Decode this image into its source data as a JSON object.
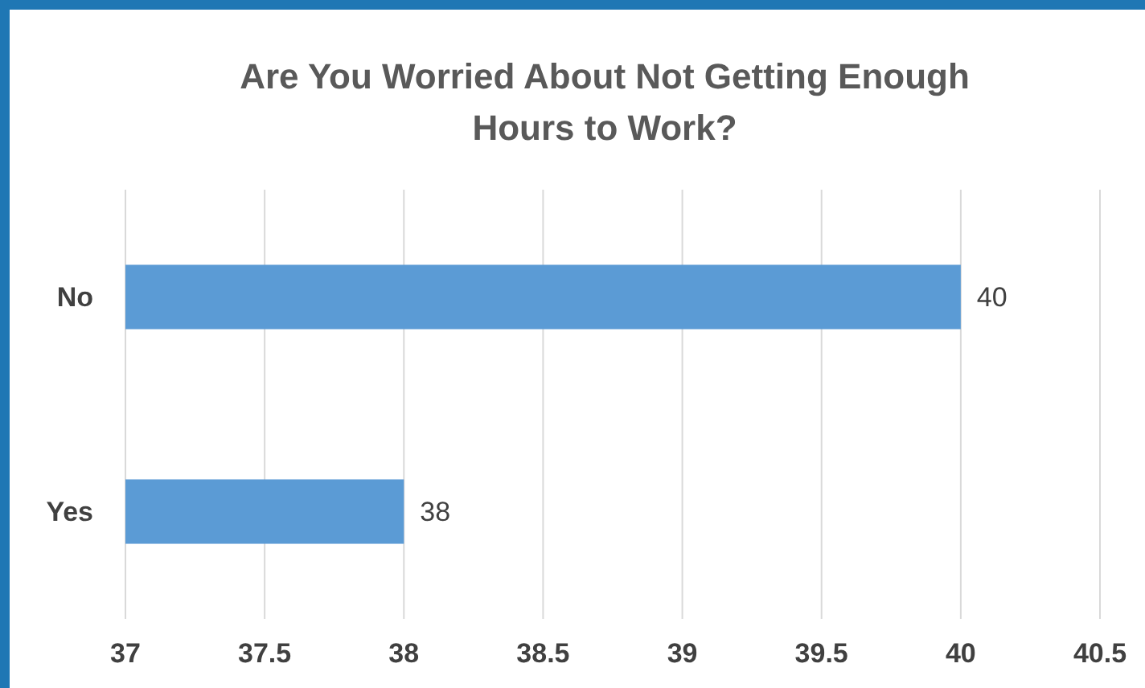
{
  "chart_data": {
    "type": "bar",
    "orientation": "horizontal",
    "title": "Are You Worried About Not Getting Enough Hours to Work?",
    "categories": [
      "No",
      "Yes"
    ],
    "values": [
      40,
      38
    ],
    "color": "#5b9bd5",
    "xlim": [
      37,
      40.5
    ],
    "xticks": [
      37,
      37.5,
      38,
      38.5,
      39,
      39.5,
      40,
      40.5
    ],
    "grid": "x",
    "data_labels": true
  }
}
